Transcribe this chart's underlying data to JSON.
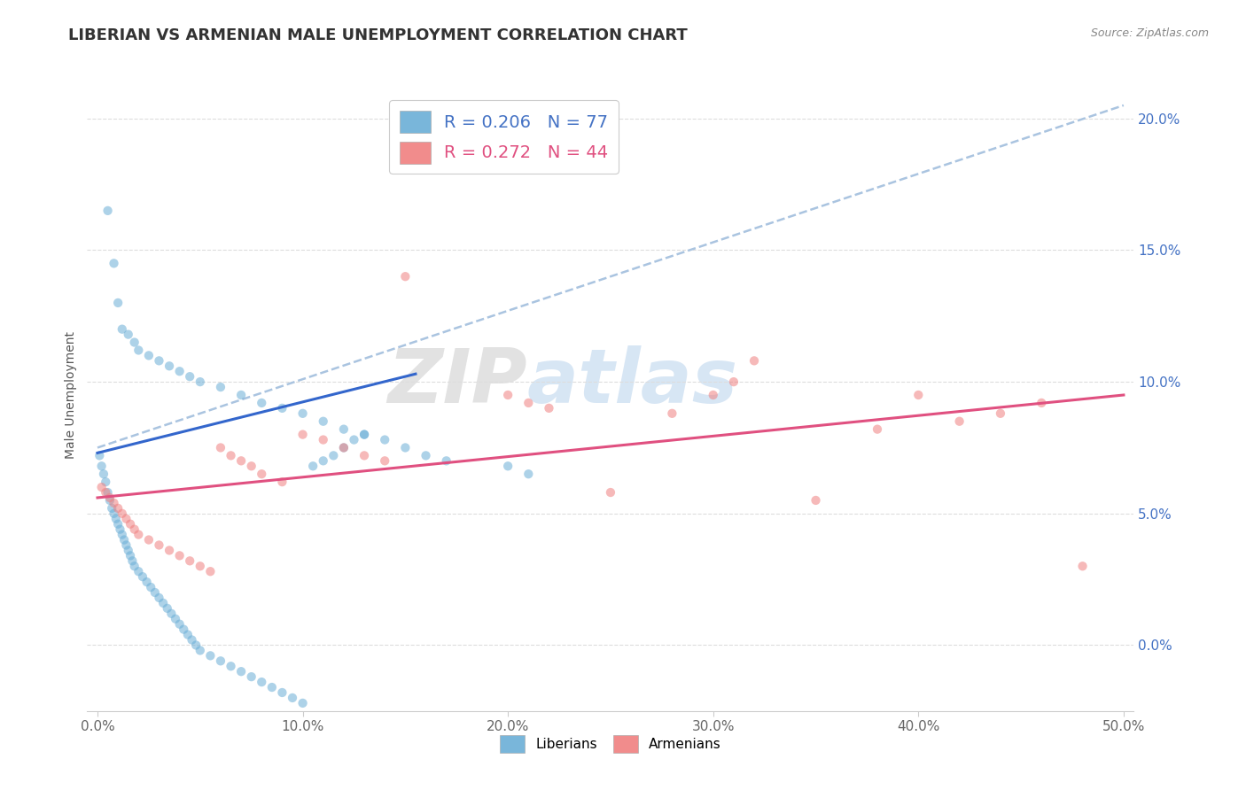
{
  "title": "LIBERIAN VS ARMENIAN MALE UNEMPLOYMENT CORRELATION CHART",
  "source": "Source: ZipAtlas.com",
  "ylabel": "Male Unemployment",
  "watermark_zip": "ZIP",
  "watermark_atlas": "atlas",
  "xlim": [
    -0.005,
    0.505
  ],
  "ylim": [
    -0.025,
    0.215
  ],
  "xticks": [
    0.0,
    0.1,
    0.2,
    0.3,
    0.4,
    0.5
  ],
  "xtick_labels": [
    "0.0%",
    "10.0%",
    "20.0%",
    "30.0%",
    "40.0%",
    "50.0%"
  ],
  "yticks": [
    0.0,
    0.05,
    0.1,
    0.15,
    0.2
  ],
  "ytick_labels": [
    "0.0%",
    "5.0%",
    "10.0%",
    "15.0%",
    "20.0%"
  ],
  "liberian_color": "#6baed6",
  "armenian_color": "#f08080",
  "trend_line_color": "#aac4e0",
  "liberian_line_color": "#3366cc",
  "armenian_line_color": "#e05080",
  "liberian_R": 0.206,
  "liberian_N": 77,
  "armenian_R": 0.272,
  "armenian_N": 44,
  "liberian_scatter_x": [
    0.001,
    0.002,
    0.003,
    0.004,
    0.005,
    0.006,
    0.007,
    0.008,
    0.009,
    0.01,
    0.011,
    0.012,
    0.013,
    0.014,
    0.015,
    0.016,
    0.017,
    0.018,
    0.02,
    0.022,
    0.024,
    0.026,
    0.028,
    0.03,
    0.032,
    0.034,
    0.036,
    0.038,
    0.04,
    0.042,
    0.044,
    0.046,
    0.048,
    0.05,
    0.055,
    0.06,
    0.065,
    0.07,
    0.075,
    0.08,
    0.085,
    0.09,
    0.095,
    0.1,
    0.105,
    0.11,
    0.115,
    0.12,
    0.125,
    0.13,
    0.005,
    0.008,
    0.01,
    0.012,
    0.015,
    0.018,
    0.02,
    0.025,
    0.03,
    0.035,
    0.04,
    0.045,
    0.05,
    0.06,
    0.07,
    0.08,
    0.09,
    0.1,
    0.11,
    0.12,
    0.13,
    0.14,
    0.15,
    0.16,
    0.17,
    0.2,
    0.21
  ],
  "liberian_scatter_y": [
    0.072,
    0.068,
    0.065,
    0.062,
    0.058,
    0.055,
    0.052,
    0.05,
    0.048,
    0.046,
    0.044,
    0.042,
    0.04,
    0.038,
    0.036,
    0.034,
    0.032,
    0.03,
    0.028,
    0.026,
    0.024,
    0.022,
    0.02,
    0.018,
    0.016,
    0.014,
    0.012,
    0.01,
    0.008,
    0.006,
    0.004,
    0.002,
    0.0,
    -0.002,
    -0.004,
    -0.006,
    -0.008,
    -0.01,
    -0.012,
    -0.014,
    -0.016,
    -0.018,
    -0.02,
    -0.022,
    0.068,
    0.07,
    0.072,
    0.075,
    0.078,
    0.08,
    0.165,
    0.145,
    0.13,
    0.12,
    0.118,
    0.115,
    0.112,
    0.11,
    0.108,
    0.106,
    0.104,
    0.102,
    0.1,
    0.098,
    0.095,
    0.092,
    0.09,
    0.088,
    0.085,
    0.082,
    0.08,
    0.078,
    0.075,
    0.072,
    0.07,
    0.068,
    0.065
  ],
  "armenian_scatter_x": [
    0.002,
    0.004,
    0.006,
    0.008,
    0.01,
    0.012,
    0.014,
    0.016,
    0.018,
    0.02,
    0.025,
    0.03,
    0.035,
    0.04,
    0.045,
    0.05,
    0.055,
    0.06,
    0.065,
    0.07,
    0.075,
    0.08,
    0.09,
    0.1,
    0.11,
    0.12,
    0.13,
    0.14,
    0.15,
    0.2,
    0.21,
    0.22,
    0.25,
    0.28,
    0.3,
    0.31,
    0.32,
    0.35,
    0.38,
    0.4,
    0.42,
    0.44,
    0.46,
    0.48
  ],
  "armenian_scatter_y": [
    0.06,
    0.058,
    0.056,
    0.054,
    0.052,
    0.05,
    0.048,
    0.046,
    0.044,
    0.042,
    0.04,
    0.038,
    0.036,
    0.034,
    0.032,
    0.03,
    0.028,
    0.075,
    0.072,
    0.07,
    0.068,
    0.065,
    0.062,
    0.08,
    0.078,
    0.075,
    0.072,
    0.07,
    0.14,
    0.095,
    0.092,
    0.09,
    0.058,
    0.088,
    0.095,
    0.1,
    0.108,
    0.055,
    0.082,
    0.095,
    0.085,
    0.088,
    0.092,
    0.03
  ],
  "liberian_line_x": [
    0.0,
    0.155
  ],
  "liberian_line_y": [
    0.073,
    0.103
  ],
  "armenian_line_x": [
    0.0,
    0.5
  ],
  "armenian_line_y": [
    0.056,
    0.095
  ],
  "trend_line_x": [
    0.0,
    0.5
  ],
  "trend_line_y": [
    0.075,
    0.205
  ],
  "background_color": "#ffffff",
  "grid_color": "#dddddd",
  "title_fontsize": 13,
  "label_fontsize": 10,
  "tick_fontsize": 11,
  "scatter_size": 55,
  "scatter_alpha": 0.55
}
